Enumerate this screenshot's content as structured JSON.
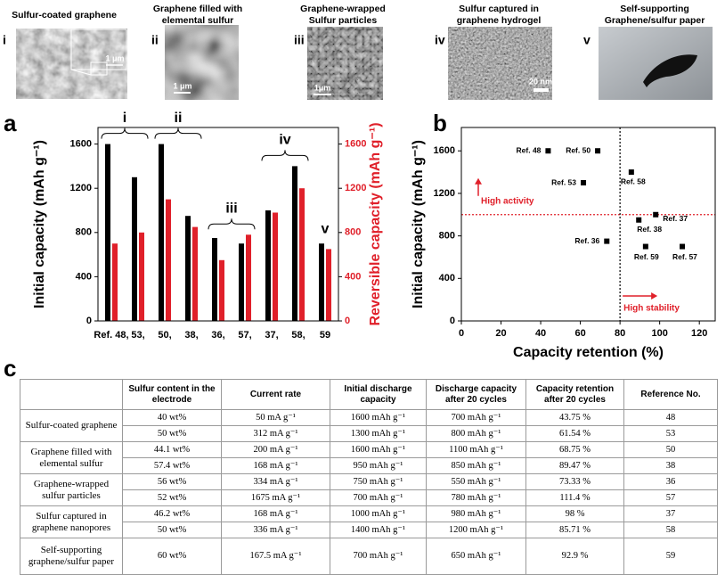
{
  "figure_panels": [
    {
      "numeral": "i",
      "caption": [
        "Sulfur-coated graphene"
      ],
      "scale_bar": "1 μm"
    },
    {
      "numeral": "ii",
      "caption": [
        "Graphene filled with",
        "elemental sulfur"
      ],
      "scale_bar": "1 μm"
    },
    {
      "numeral": "iii",
      "caption": [
        "Graphene-wrapped",
        "Sulfur particles"
      ],
      "scale_bar": "1μm"
    },
    {
      "numeral": "iv",
      "caption": [
        "Sulfur captured in",
        "graphene hydrogel"
      ],
      "scale_bar": "20 nm"
    },
    {
      "numeral": "v",
      "caption": [
        "Self-supporting",
        "Graphene/sulfur paper"
      ]
    }
  ],
  "chart_data": [
    {
      "type": "bar",
      "panel": "a",
      "categories": [
        "Ref. 48,",
        "53,",
        "50,",
        "38,",
        "36,",
        "57,",
        "37,",
        "58,",
        "59"
      ],
      "series": [
        {
          "color": "#000000",
          "values": [
            1600,
            1300,
            1600,
            950,
            750,
            700,
            1000,
            1400,
            700
          ]
        },
        {
          "color": "#e0202a",
          "axis": "y2",
          "values": [
            700,
            800,
            1100,
            850,
            550,
            780,
            980,
            1200,
            650
          ]
        }
      ],
      "ylabel": "Initial capacity (mAh g⁻¹)",
      "y2label": "Reversible capacity (mAh g⁻¹)",
      "y2color": "#e0202a",
      "ylim": [
        0,
        1750
      ],
      "yticks": [
        0,
        400,
        800,
        1200,
        1600
      ],
      "y2lim": [
        0,
        1750
      ],
      "y2ticks": [
        0,
        400,
        800,
        1200,
        1600
      ],
      "annotations": [
        {
          "text": "i",
          "categories": [
            "Ref. 48,",
            "53,"
          ]
        },
        {
          "text": "ii",
          "categories": [
            "50,",
            "38,"
          ]
        },
        {
          "text": "iii",
          "categories": [
            "36,",
            "57,"
          ]
        },
        {
          "text": "iv",
          "categories": [
            "37,",
            "58,"
          ]
        },
        {
          "text": "v",
          "categories": [
            "59"
          ]
        }
      ]
    },
    {
      "type": "scatter",
      "panel": "b",
      "xlabel": "Capacity retention (%)",
      "ylabel": "Initial capacity (mAh g⁻¹)",
      "x": [
        43.75,
        61.54,
        68.75,
        89.47,
        73.33,
        111.4,
        98,
        85.71,
        92.9
      ],
      "values": [
        1600,
        1300,
        1600,
        950,
        750,
        700,
        1000,
        1400,
        700
      ],
      "point_labels": [
        "Ref. 48",
        "Ref. 53",
        "Ref. 50",
        "Ref. 38",
        "Ref. 36",
        "Ref. 57",
        "Ref. 37",
        "Ref. 58",
        "Ref. 59"
      ],
      "color": "#000000",
      "xlim": [
        0,
        128
      ],
      "xticks": [
        0,
        20,
        40,
        60,
        80,
        100,
        120
      ],
      "ylim": [
        0,
        1820
      ],
      "yticks": [
        0,
        400,
        800,
        1200,
        1600
      ],
      "reference_lines": [
        {
          "axis": "y",
          "value": 1000,
          "color": "#e0202a",
          "label": "High activity"
        },
        {
          "axis": "x",
          "value": 80,
          "color": "#000000",
          "label": "High stability"
        }
      ],
      "annotation_color": "#e0202a"
    }
  ],
  "table": {
    "panel": "c",
    "headers": [
      "Sulfur content in the electrode",
      "Current rate",
      "Initial discharge capacity",
      "Discharge capacity after 20 cycles",
      "Capacity retention after 20 cycles",
      "Reference No."
    ],
    "groups": [
      {
        "label": "Sulfur-coated graphene",
        "rows": [
          [
            "40 wt%",
            "50 mA g⁻¹",
            "1600 mAh g⁻¹",
            "700 mAh g⁻¹",
            "43.75 %",
            "48"
          ],
          [
            "50 wt%",
            "312 mA g⁻¹",
            "1300 mAh g⁻¹",
            "800 mAh g⁻¹",
            "61.54 %",
            "53"
          ]
        ]
      },
      {
        "label": "Graphene filled with elemental sulfur",
        "rows": [
          [
            "44.1 wt%",
            "200 mA g⁻¹",
            "1600 mAh g⁻¹",
            "1100 mAh g⁻¹",
            "68.75 %",
            "50"
          ],
          [
            "57.4 wt%",
            "168 mA g⁻¹",
            "950 mAh g⁻¹",
            "850 mAh g⁻¹",
            "89.47 %",
            "38"
          ]
        ]
      },
      {
        "label": "Graphene-wrapped sulfur particles",
        "rows": [
          [
            "56 wt%",
            "334 mA g⁻¹",
            "750 mAh g⁻¹",
            "550 mAh g⁻¹",
            "73.33 %",
            "36"
          ],
          [
            "52 wt%",
            "1675 mA g⁻¹",
            "700 mAh g⁻¹",
            "780 mAh g⁻¹",
            "111.4 %",
            "57"
          ]
        ]
      },
      {
        "label": "Sulfur captured in graphene nanopores",
        "rows": [
          [
            "46.2 wt%",
            "168 mA g⁻¹",
            "1000 mAh g⁻¹",
            "980 mAh g⁻¹",
            "98 %",
            "37"
          ],
          [
            "50 wt%",
            "336 mA g⁻¹",
            "1400 mAh g⁻¹",
            "1200 mAh g⁻¹",
            "85.71 %",
            "58"
          ]
        ]
      },
      {
        "label": "Self-supporting graphene/sulfur paper",
        "rows": [
          [
            "60 wt%",
            "167.5 mA g⁻¹",
            "700 mAh g⁻¹",
            "650 mAh g⁻¹",
            "92.9 %",
            "59"
          ]
        ]
      }
    ]
  }
}
